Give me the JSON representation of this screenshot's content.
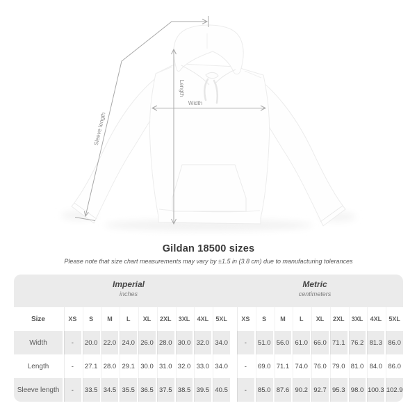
{
  "measurements": {
    "sleeve_label": "Sleeve length",
    "length_label": "Length",
    "width_label": "Width"
  },
  "title": "Gildan 18500 sizes",
  "note": "Please note that size chart measurements may vary by ±1.5 in (3.8 cm) due to manufacturing tolerances",
  "table": {
    "size_header": "Size",
    "sections": [
      {
        "label": "Imperial",
        "sublabel": "inches"
      },
      {
        "label": "Metric",
        "sublabel": "centimeters"
      }
    ],
    "sizes": [
      "XS",
      "S",
      "M",
      "L",
      "XL",
      "2XL",
      "3XL",
      "4XL",
      "5XL"
    ],
    "rows": [
      {
        "label": "Width",
        "imperial": [
          "-",
          "20.0",
          "22.0",
          "24.0",
          "26.0",
          "28.0",
          "30.0",
          "32.0",
          "34.0"
        ],
        "metric": [
          "-",
          "51.0",
          "56.0",
          "61.0",
          "66.0",
          "71.1",
          "76.2",
          "81.3",
          "86.0"
        ]
      },
      {
        "label": "Length",
        "imperial": [
          "-",
          "27.1",
          "28.0",
          "29.1",
          "30.0",
          "31.0",
          "32.0",
          "33.0",
          "34.0"
        ],
        "metric": [
          "-",
          "69.0",
          "71.1",
          "74.0",
          "76.0",
          "79.0",
          "81.0",
          "84.0",
          "86.0"
        ]
      },
      {
        "label": "Sleeve length",
        "imperial": [
          "-",
          "33.5",
          "34.5",
          "35.5",
          "36.5",
          "37.5",
          "38.5",
          "39.5",
          "40.5"
        ],
        "metric": [
          "-",
          "85.0",
          "87.6",
          "90.2",
          "92.7",
          "95.3",
          "98.0",
          "100.3",
          "102.9"
        ]
      }
    ]
  },
  "colors": {
    "table_band": "#ebebeb",
    "measure_line": "#a8a8a8",
    "measure_label": "#8e8e8e",
    "title_text": "#3a3a3a"
  }
}
